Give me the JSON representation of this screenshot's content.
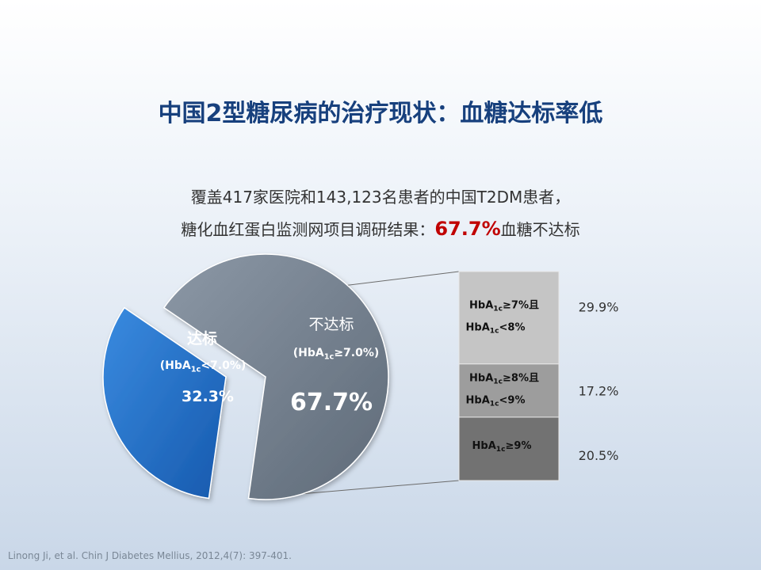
{
  "title": "中国2型糖尿病的治疗现状：血糖达标率低",
  "subtitle": {
    "line1": "覆盖417家医院和143,123名患者的中国T2DM患者，",
    "line2_prefix": "糖化血红蛋白监测网项目调研结果：",
    "line2_highlight": "67.7%",
    "line2_suffix": "血糖不达标"
  },
  "citation": "Linong Ji, et al. Chin J Diabetes Mellius, 2012,4(7): 397-401.",
  "chart_data": [
    {
      "type": "pie",
      "slices": [
        {
          "name": "达标",
          "criterion": {
            "prefix": "(HbA",
            "sub": "1c",
            "suffix": "<7.0%)"
          },
          "value": 32.3,
          "label": "32.3%",
          "color": "#1f6fc9"
        },
        {
          "name": "不达标",
          "criterion": {
            "prefix": "(HbA",
            "sub": "1c",
            "suffix": "≥7.0%)"
          },
          "value": 67.7,
          "label": "67.7%",
          "color": "#7a8796"
        }
      ]
    },
    {
      "type": "bar",
      "stacked": true,
      "segments": [
        {
          "line1": {
            "prefix": "HbA",
            "sub": "1c",
            "suffix": "≥7%且"
          },
          "line2": {
            "prefix": "HbA",
            "sub": "1c",
            "suffix": "<8%"
          },
          "value": 29.9,
          "label": "29.9%",
          "color": "#c5c5c5"
        },
        {
          "line1": {
            "prefix": "HbA",
            "sub": "1c",
            "suffix": "≥8%且"
          },
          "line2": {
            "prefix": "HbA",
            "sub": "1c",
            "suffix": "<9%"
          },
          "value": 17.2,
          "label": "17.2%",
          "color": "#9d9d9d"
        },
        {
          "line1": {
            "prefix": "HbA",
            "sub": "1c",
            "suffix": "≥9%"
          },
          "value": 20.5,
          "label": "20.5%",
          "color": "#727272"
        }
      ]
    }
  ]
}
